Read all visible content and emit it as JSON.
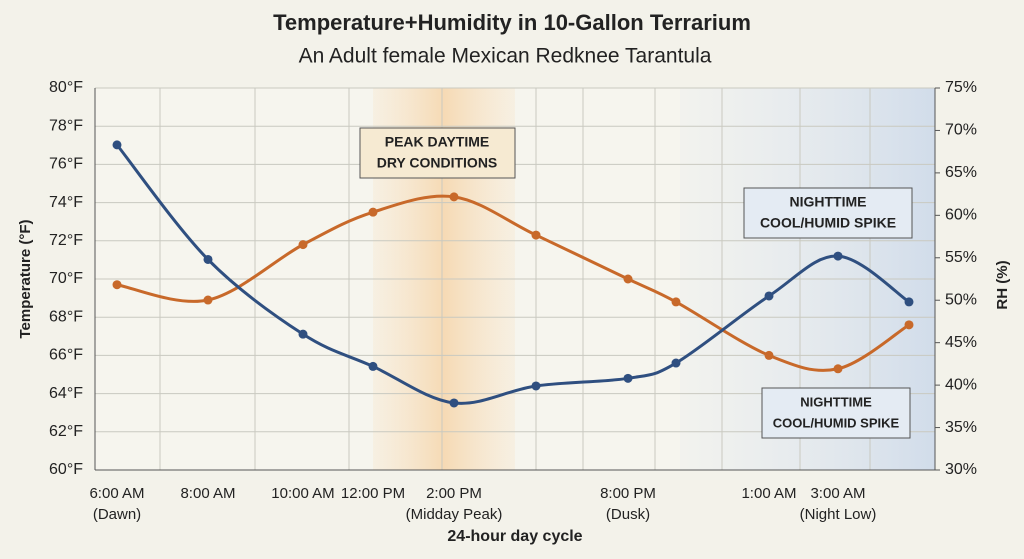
{
  "chart_data": {
    "type": "line",
    "title": "Temperature+Humidity  in 10-Gallon Terrarium",
    "subtitle": "An Adult female Mexican Redknee Tarantula",
    "xlabel": "24-hour day cycle",
    "ylabel": "Temperature (°F)",
    "y2label": "RH (%)",
    "categories": [
      "6:00 AM",
      "8:00 AM",
      "10:00 AM",
      "12:00 PM",
      "2:00 PM",
      null,
      "8:00 PM",
      null,
      "1:00 AM",
      "3:00 AM",
      null
    ],
    "category_notes": [
      "(Dawn)",
      null,
      null,
      null,
      "(Midday Peak)",
      null,
      "(Dusk)",
      null,
      null,
      "(Night Low)",
      null
    ],
    "series": [
      {
        "color": "#c8692a",
        "values": [
          69.7,
          68.9,
          71.8,
          73.5,
          74.3,
          72.3,
          70.0,
          68.8,
          66.0,
          65.3,
          67.6
        ]
      },
      {
        "color": "#2f4f80",
        "axis": "y2",
        "values": [
          68.3,
          54.8,
          46.0,
          42.2,
          37.9,
          39.9,
          40.8,
          42.6,
          50.5,
          55.2,
          49.8
        ]
      }
    ],
    "ylim": [
      60,
      80
    ],
    "yticks": [
      {
        "value": 60,
        "label": "60°F"
      },
      {
        "value": 62,
        "label": "62°F"
      },
      {
        "value": 64,
        "label": "64°F"
      },
      {
        "value": 66,
        "label": "66°F"
      },
      {
        "value": 68,
        "label": "68°F"
      },
      {
        "value": 70,
        "label": "70°F"
      },
      {
        "value": 72,
        "label": "72°F"
      },
      {
        "value": 74,
        "label": "74°F"
      },
      {
        "value": 76,
        "label": "76°F"
      },
      {
        "value": 78,
        "label": "78°F"
      },
      {
        "value": 80,
        "label": "80°F"
      }
    ],
    "y2lim": [
      30,
      75
    ],
    "y2ticks": [
      {
        "value": 30,
        "label": "30%"
      },
      {
        "value": 35,
        "label": "35%"
      },
      {
        "value": 40,
        "label": "40%"
      },
      {
        "value": 45,
        "label": "45%"
      },
      {
        "value": 50,
        "label": "50%"
      },
      {
        "value": 55,
        "label": "55%"
      },
      {
        "value": 60,
        "label": "60%"
      },
      {
        "value": 65,
        "label": "65%"
      },
      {
        "value": 70,
        "label": "70%"
      },
      {
        "value": 75,
        "label": "75%"
      }
    ],
    "grid": true,
    "annotations": [
      {
        "lines": [
          "PEAK DAYTIME",
          "DRY CONDITIONS"
        ]
      },
      {
        "lines": [
          "NIGHTTIME",
          "COOL/HUMID SPIKE"
        ]
      },
      {
        "lines": [
          "NIGHTTIME",
          "COOL/HUMID SPIKE"
        ]
      }
    ]
  }
}
